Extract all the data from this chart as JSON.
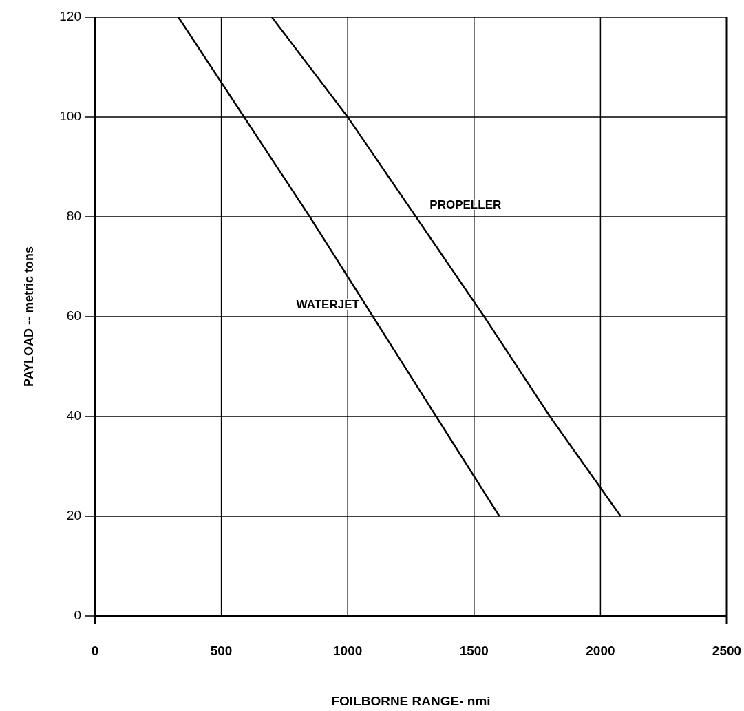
{
  "chart_data": {
    "type": "line",
    "xlabel": "FOILBORNE RANGE- nmi",
    "ylabel": "PAYLOAD -- metric tons",
    "xlim": [
      0,
      2500
    ],
    "ylim": [
      0,
      120
    ],
    "xticks": [
      0,
      500,
      1000,
      1500,
      2000,
      2500
    ],
    "yticks": [
      0,
      20,
      40,
      60,
      80,
      100,
      120
    ],
    "grid": true,
    "legend": false,
    "marker": "none",
    "line_style": "solid",
    "series": [
      {
        "name": "WATERJET",
        "color": "#000000",
        "x": [
          330,
          590,
          850,
          1100,
          1350,
          1600
        ],
        "values": [
          120,
          100,
          80,
          60,
          40,
          20
        ]
      },
      {
        "name": "PROPELLER",
        "color": "#000000",
        "x": [
          700,
          1000,
          1270,
          1540,
          1800,
          2080
        ],
        "values": [
          120,
          100,
          80,
          60,
          40,
          20
        ]
      }
    ]
  }
}
